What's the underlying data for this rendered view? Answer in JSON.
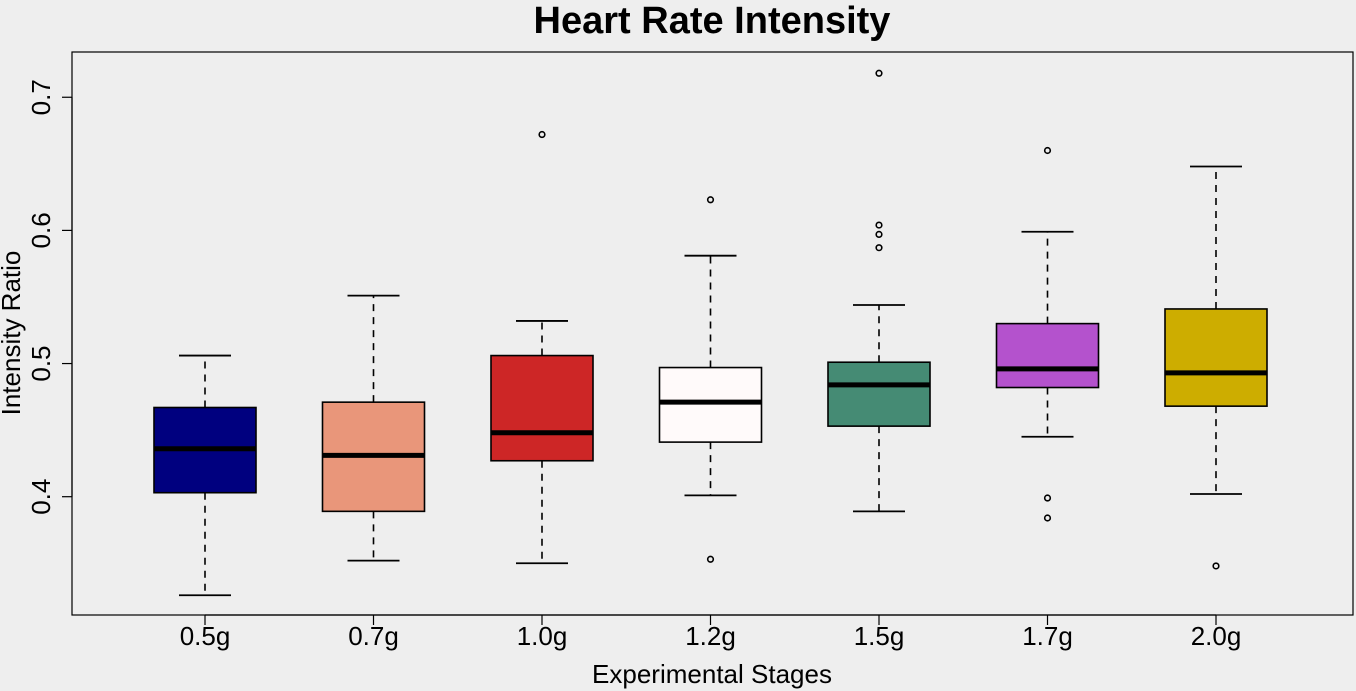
{
  "chart_data": {
    "type": "boxplot",
    "title": "Heart Rate Intensity",
    "xlabel": "Experimental Stages",
    "ylabel": "Intensity Ratio",
    "ylim": [
      0.315,
      0.735
    ],
    "yticks": [
      0.4,
      0.5,
      0.6,
      0.7
    ],
    "ytick_labels": [
      "0.4",
      "0.5",
      "0.6",
      "0.7"
    ],
    "grid": false,
    "categories": [
      "0.5g",
      "0.7g",
      "1.0g",
      "1.2g",
      "1.5g",
      "1.7g",
      "2.0g"
    ],
    "series": [
      {
        "name": "0.5g",
        "color": "#00007f",
        "whisker_low": 0.326,
        "q1": 0.403,
        "median": 0.436,
        "q3": 0.467,
        "whisker_high": 0.506,
        "outliers": []
      },
      {
        "name": "0.7g",
        "color": "#e9967a",
        "whisker_low": 0.352,
        "q1": 0.389,
        "median": 0.431,
        "q3": 0.471,
        "whisker_high": 0.551,
        "outliers": []
      },
      {
        "name": "1.0g",
        "color": "#cd2626",
        "whisker_low": 0.35,
        "q1": 0.427,
        "median": 0.448,
        "q3": 0.506,
        "whisker_high": 0.532,
        "outliers": [
          0.672
        ]
      },
      {
        "name": "1.2g",
        "color": "#fffafa",
        "whisker_low": 0.401,
        "q1": 0.441,
        "median": 0.471,
        "q3": 0.497,
        "whisker_high": 0.581,
        "outliers": [
          0.623,
          0.353
        ]
      },
      {
        "name": "1.5g",
        "color": "#458b74",
        "whisker_low": 0.389,
        "q1": 0.453,
        "median": 0.484,
        "q3": 0.501,
        "whisker_high": 0.544,
        "outliers": [
          0.718,
          0.604,
          0.597,
          0.587
        ]
      },
      {
        "name": "1.7g",
        "color": "#b452cd",
        "whisker_low": 0.445,
        "q1": 0.482,
        "median": 0.496,
        "q3": 0.53,
        "whisker_high": 0.599,
        "outliers": [
          0.66,
          0.399,
          0.384
        ]
      },
      {
        "name": "2.0g",
        "color": "#cdad00",
        "whisker_low": 0.402,
        "q1": 0.468,
        "median": 0.493,
        "q3": 0.541,
        "whisker_high": 0.648,
        "outliers": [
          0.348
        ]
      }
    ]
  }
}
